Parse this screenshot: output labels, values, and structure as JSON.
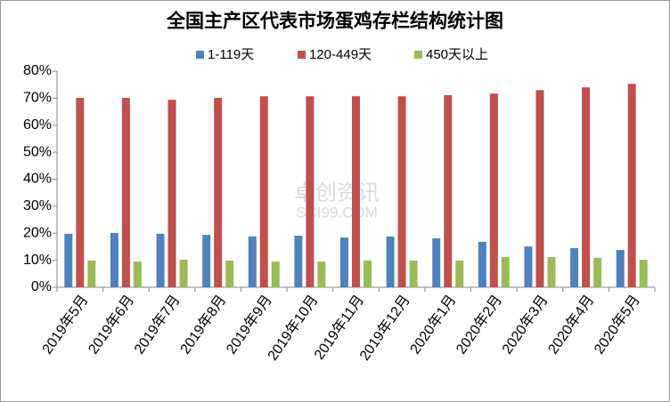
{
  "chart_data": {
    "type": "bar",
    "title": "全国主产区代表市场蛋鸡存栏结构统计图",
    "categories": [
      "2019年5月",
      "2019年6月",
      "2019年7月",
      "2019年8月",
      "2019年9月",
      "2019年10月",
      "2019年11月",
      "2019年12月",
      "2020年1月",
      "2020年2月",
      "2020年3月",
      "2020年4月",
      "2020年5月"
    ],
    "series": [
      {
        "name": "1-119天",
        "color": "#4f81bd",
        "values": [
          19.8,
          20.1,
          19.8,
          19.4,
          18.8,
          19.1,
          18.4,
          18.8,
          18.1,
          16.8,
          15.1,
          14.5,
          13.8
        ]
      },
      {
        "name": "120-449天",
        "color": "#c0504d",
        "values": [
          70.1,
          70.1,
          69.4,
          70.1,
          70.7,
          70.7,
          70.7,
          70.7,
          71.1,
          71.7,
          73.0,
          74.0,
          75.3
        ]
      },
      {
        "name": "450天以上",
        "color": "#9bbb59",
        "values": [
          9.9,
          9.5,
          10.2,
          9.9,
          9.5,
          9.5,
          9.9,
          9.9,
          9.9,
          11.2,
          11.2,
          10.9,
          10.2
        ]
      }
    ],
    "ylim": [
      0,
      80
    ],
    "yticks": [
      {
        "value": 0,
        "label": "0%"
      },
      {
        "value": 10,
        "label": "10%"
      },
      {
        "value": 20,
        "label": "20%"
      },
      {
        "value": 30,
        "label": "30%"
      },
      {
        "value": 40,
        "label": "40%"
      },
      {
        "value": 50,
        "label": "50%"
      },
      {
        "value": 60,
        "label": "60%"
      },
      {
        "value": 70,
        "label": "70%"
      },
      {
        "value": 80,
        "label": "80%"
      }
    ],
    "grid": false,
    "legend": "top",
    "watermark": [
      "卓创资讯",
      "SCI99.COM"
    ]
  }
}
